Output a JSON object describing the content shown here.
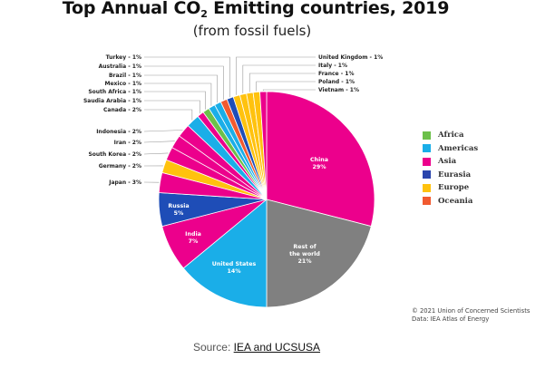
{
  "chart_data": {
    "type": "pie",
    "title_parts": {
      "before": "Top Annual CO",
      "subscript": "2",
      "after": " Emitting countries, 2019"
    },
    "title": "Top Annual CO2 Emitting countries, 2019",
    "subtitle": "(from fossil fuels)",
    "unit": "%",
    "slices": [
      {
        "label": "China",
        "value": 29,
        "region": "Asia",
        "label_position": "inside"
      },
      {
        "label": "Rest of the world",
        "value": 21,
        "region": "Rest",
        "label_position": "inside"
      },
      {
        "label": "United States",
        "value": 14,
        "region": "Americas",
        "label_position": "inside"
      },
      {
        "label": "India",
        "value": 7,
        "region": "Asia",
        "label_position": "inside"
      },
      {
        "label": "Russia",
        "value": 5,
        "region": "Eurasia",
        "label_position": "inside"
      },
      {
        "label": "Japan",
        "value": 3,
        "region": "Asia",
        "label_position": "outside-left"
      },
      {
        "label": "Germany",
        "value": 2,
        "region": "Europe",
        "label_position": "outside-left"
      },
      {
        "label": "South Korea",
        "value": 2,
        "region": "Asia",
        "label_position": "outside-left"
      },
      {
        "label": "Iran",
        "value": 2,
        "region": "Asia",
        "label_position": "outside-left"
      },
      {
        "label": "Indonesia",
        "value": 2,
        "region": "Asia",
        "label_position": "outside-left"
      },
      {
        "label": "Canada",
        "value": 2,
        "region": "Americas",
        "label_position": "outside-left"
      },
      {
        "label": "Saudia Arabia",
        "value": 1,
        "region": "Asia",
        "label_position": "outside-left"
      },
      {
        "label": "South Africa",
        "value": 1,
        "region": "Africa",
        "label_position": "outside-left"
      },
      {
        "label": "Mexico",
        "value": 1,
        "region": "Americas",
        "label_position": "outside-left"
      },
      {
        "label": "Brazil",
        "value": 1,
        "region": "Americas",
        "label_position": "outside-left"
      },
      {
        "label": "Australia",
        "value": 1,
        "region": "Oceania",
        "label_position": "outside-left"
      },
      {
        "label": "Turkey",
        "value": 1,
        "region": "Eurasia",
        "label_position": "outside-left"
      },
      {
        "label": "United Kingdom",
        "value": 1,
        "region": "Europe",
        "label_position": "outside-right"
      },
      {
        "label": "Italy",
        "value": 1,
        "region": "Europe",
        "label_position": "outside-right"
      },
      {
        "label": "France",
        "value": 1,
        "region": "Europe",
        "label_position": "outside-right"
      },
      {
        "label": "Poland",
        "value": 1,
        "region": "Europe",
        "label_position": "outside-right"
      },
      {
        "label": "Vietnam",
        "value": 1,
        "region": "Asia",
        "label_position": "outside-right"
      }
    ],
    "legend": {
      "placement": "right",
      "entries": [
        {
          "label": "Africa",
          "color": "#6cc04a"
        },
        {
          "label": "Americas",
          "color": "#1aaee8"
        },
        {
          "label": "Asia",
          "color": "#ec008c"
        },
        {
          "label": "Eurasia",
          "color": "#2a45ad"
        },
        {
          "label": "Europe",
          "color": "#ffc20e"
        },
        {
          "label": "Oceania",
          "color": "#f15a30"
        }
      ]
    },
    "region_colors": {
      "Africa": "#6cc04a",
      "Americas": "#1aaee8",
      "Asia": "#ec008c",
      "Eurasia": "#1e4db7",
      "Europe": "#ffc20e",
      "Oceania": "#f15a30",
      "Rest": "#808080"
    }
  },
  "credit": {
    "line1": "© 2021 Union of Concerned Scientists",
    "line2": "Data: IEA Atlas of Energy"
  },
  "source": {
    "prefix": "Source: ",
    "link_text": "IEA and UCSUSA"
  }
}
